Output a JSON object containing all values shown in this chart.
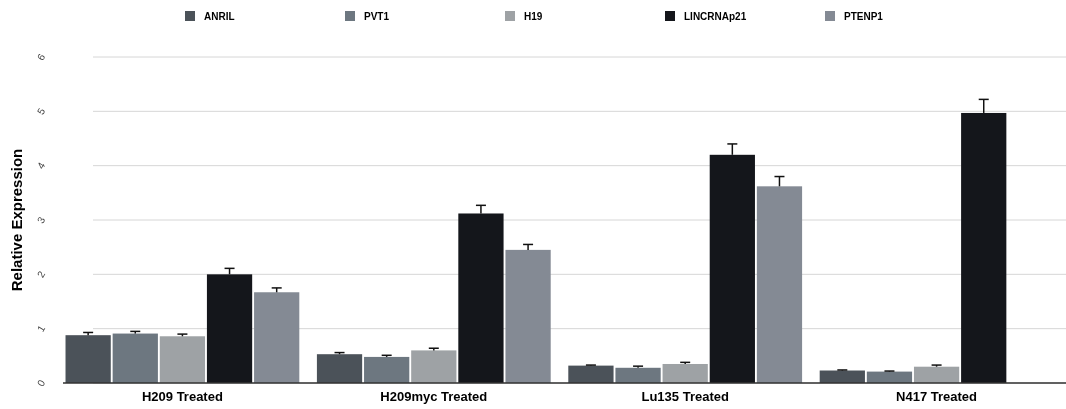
{
  "chart_data": {
    "type": "bar",
    "ylabel": "Relative Expression",
    "categories": [
      "H209 Treated",
      "H209myc Treated",
      "Lu135 Treated",
      "N417 Treated"
    ],
    "series": [
      {
        "name": "ANRIL",
        "color": "#4b5259",
        "values": [
          0.88,
          0.53,
          0.32,
          0.23
        ],
        "errors": [
          0.05,
          0.03,
          0.01,
          0.01
        ]
      },
      {
        "name": "PVT1",
        "color": "#6d7780",
        "values": [
          0.91,
          0.48,
          0.28,
          0.21
        ],
        "errors": [
          0.04,
          0.03,
          0.03,
          0.01
        ]
      },
      {
        "name": "H19",
        "color": "#9ea2a5",
        "values": [
          0.86,
          0.6,
          0.35,
          0.3
        ],
        "errors": [
          0.04,
          0.04,
          0.03,
          0.03
        ]
      },
      {
        "name": "LINCRNAp21",
        "color": "#14161b",
        "values": [
          2.0,
          3.12,
          4.2,
          4.97
        ],
        "errors": [
          0.11,
          0.15,
          0.2,
          0.25
        ]
      },
      {
        "name": "PTENP1",
        "color": "#848a94",
        "values": [
          1.67,
          2.45,
          3.62,
          null
        ],
        "errors": [
          0.08,
          0.1,
          0.18,
          null
        ]
      }
    ],
    "ylim": [
      0,
      6
    ],
    "yticks": [
      0,
      1,
      2,
      3,
      4,
      5,
      6
    ],
    "grid": "y",
    "legend": "top"
  }
}
